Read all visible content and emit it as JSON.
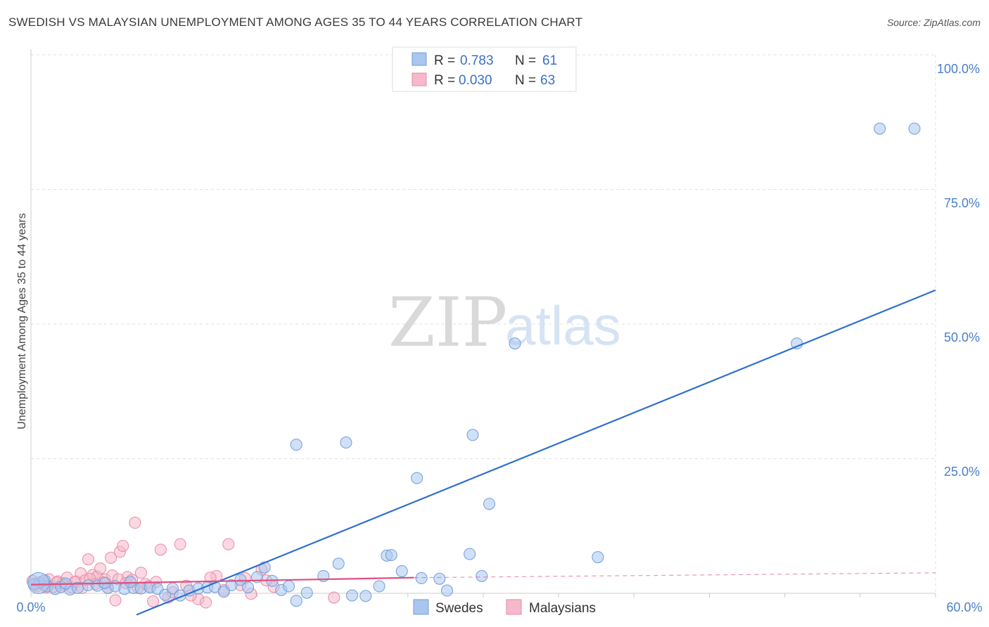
{
  "title": "SWEDISH VS MALAYSIAN UNEMPLOYMENT AMONG AGES 35 TO 44 YEARS CORRELATION CHART",
  "source": "Source: ZipAtlas.com",
  "watermark": {
    "zip": "ZIP",
    "atlas": "atlas"
  },
  "colors": {
    "swedes_fill": "#a9c6ee",
    "swedes_stroke": "#6f9fdc",
    "swedes_line": "#2f6fd0",
    "malaysians_fill": "#f6b9cb",
    "malaysians_stroke": "#e88aa6",
    "malaysians_line": "#e0507e",
    "grid": "#e0e0e0",
    "tick_text": "#4a7fc8"
  },
  "legend": {
    "swedes": {
      "r_label": "R =",
      "r_value": "0.783",
      "n_label": "N =",
      "n_value": "61"
    },
    "malaysians": {
      "r_label": "R =",
      "r_value": "0.030",
      "n_label": "N =",
      "n_value": "63"
    }
  },
  "chart_data": {
    "type": "scatter",
    "title": "SWEDISH VS MALAYSIAN UNEMPLOYMENT AMONG AGES 35 TO 44 YEARS CORRELATION CHART",
    "xlabel": "",
    "ylabel": "Unemployment Among Ages 35 to 44 years",
    "xlim": [
      0,
      60
    ],
    "ylim": [
      0,
      100
    ],
    "x_tick_labels": [
      "0.0%",
      "60.0%"
    ],
    "y_ticks": [
      25,
      50,
      75,
      100
    ],
    "y_tick_labels": [
      "25.0%",
      "50.0%",
      "75.0%",
      "100.0%"
    ],
    "grid": true,
    "series": [
      {
        "name": "Swedes",
        "r": 0.783,
        "n": 61,
        "trend": {
          "x": [
            7,
            60
          ],
          "y": [
            -4.0,
            56.3
          ]
        },
        "points": [
          [
            0.6,
            2.0
          ],
          [
            1.1,
            1.3
          ],
          [
            1.6,
            0.8
          ],
          [
            2.0,
            1.2
          ],
          [
            2.6,
            0.7
          ],
          [
            3.1,
            1.0
          ],
          [
            3.8,
            1.5
          ],
          [
            4.4,
            1.4
          ],
          [
            5.1,
            1.0
          ],
          [
            5.6,
            1.3
          ],
          [
            6.2,
            0.8
          ],
          [
            6.8,
            1.0
          ],
          [
            7.3,
            0.9
          ],
          [
            7.9,
            1.1
          ],
          [
            8.4,
            0.8
          ],
          [
            8.9,
            -0.3
          ],
          [
            9.4,
            0.9
          ],
          [
            9.9,
            -0.4
          ],
          [
            10.5,
            0.5
          ],
          [
            11.1,
            0.9
          ],
          [
            11.7,
            1.1
          ],
          [
            12.2,
            1.2
          ],
          [
            12.8,
            0.3
          ],
          [
            13.3,
            1.5
          ],
          [
            13.9,
            2.5
          ],
          [
            14.4,
            1.1
          ],
          [
            15.0,
            3.0
          ],
          [
            15.5,
            4.8
          ],
          [
            16.0,
            2.3
          ],
          [
            16.6,
            0.6
          ],
          [
            17.1,
            1.3
          ],
          [
            17.6,
            -1.4
          ],
          [
            18.3,
            0.1
          ],
          [
            19.4,
            3.2
          ],
          [
            20.4,
            5.5
          ],
          [
            21.3,
            -0.4
          ],
          [
            17.6,
            27.6
          ],
          [
            20.9,
            28.0
          ],
          [
            22.2,
            -0.5
          ],
          [
            23.1,
            1.3
          ],
          [
            23.6,
            7.0
          ],
          [
            23.9,
            7.1
          ],
          [
            24.6,
            4.1
          ],
          [
            25.6,
            21.4
          ],
          [
            25.9,
            2.8
          ],
          [
            27.1,
            2.7
          ],
          [
            27.6,
            0.5
          ],
          [
            29.1,
            7.3
          ],
          [
            29.9,
            3.2
          ],
          [
            29.3,
            29.4
          ],
          [
            30.4,
            16.6
          ],
          [
            32.1,
            46.4
          ],
          [
            37.6,
            6.7
          ],
          [
            50.8,
            46.4
          ],
          [
            56.3,
            86.3
          ],
          [
            58.6,
            86.3
          ],
          [
            0.2,
            1.7
          ],
          [
            0.9,
            2.4
          ],
          [
            2.3,
            1.8
          ],
          [
            4.9,
            1.9
          ],
          [
            6.6,
            2.1
          ]
        ]
      },
      {
        "name": "Malaysians",
        "r": 0.03,
        "n": 63,
        "trend": {
          "x": [
            0,
            25.4
          ],
          "y": [
            1.6,
            2.9
          ]
        },
        "trend_extension": {
          "x": [
            25.4,
            60
          ],
          "y": [
            2.9,
            3.8
          ]
        },
        "points": [
          [
            0.1,
            2.3
          ],
          [
            0.3,
            1.6
          ],
          [
            0.6,
            2.0
          ],
          [
            0.9,
            1.4
          ],
          [
            1.2,
            2.6
          ],
          [
            1.5,
            1.2
          ],
          [
            1.8,
            2.2
          ],
          [
            2.1,
            1.9
          ],
          [
            2.4,
            2.9
          ],
          [
            2.7,
            1.1
          ],
          [
            3.0,
            2.2
          ],
          [
            3.3,
            3.7
          ],
          [
            3.6,
            2.4
          ],
          [
            3.8,
            6.3
          ],
          [
            4.1,
            3.4
          ],
          [
            4.4,
            3.1
          ],
          [
            4.6,
            4.6
          ],
          [
            4.9,
            2.6
          ],
          [
            5.1,
            1.0
          ],
          [
            5.3,
            6.6
          ],
          [
            5.6,
            -1.3
          ],
          [
            5.9,
            7.7
          ],
          [
            6.1,
            8.8
          ],
          [
            6.4,
            3.0
          ],
          [
            6.9,
            13.1
          ],
          [
            7.1,
            1.0
          ],
          [
            7.6,
            1.7
          ],
          [
            8.1,
            -1.5
          ],
          [
            8.6,
            8.1
          ],
          [
            9.1,
            -0.8
          ],
          [
            9.9,
            9.1
          ],
          [
            10.3,
            1.4
          ],
          [
            11.1,
            -1.1
          ],
          [
            11.6,
            -1.7
          ],
          [
            12.3,
            3.2
          ],
          [
            13.1,
            9.1
          ],
          [
            13.9,
            1.5
          ],
          [
            14.6,
            -0.1
          ],
          [
            15.3,
            4.4
          ],
          [
            16.1,
            1.2
          ],
          [
            20.1,
            -0.8
          ],
          [
            0.4,
            1.3
          ],
          [
            1.0,
            1.1
          ],
          [
            1.7,
            2.0
          ],
          [
            2.2,
            1.5
          ],
          [
            2.9,
            2.1
          ],
          [
            3.4,
            1.0
          ],
          [
            3.9,
            2.7
          ],
          [
            4.3,
            1.7
          ],
          [
            4.8,
            2.0
          ],
          [
            5.4,
            3.3
          ],
          [
            5.8,
            2.6
          ],
          [
            6.3,
            1.9
          ],
          [
            6.7,
            2.5
          ],
          [
            7.3,
            3.8
          ],
          [
            7.8,
            1.3
          ],
          [
            8.3,
            2.1
          ],
          [
            9.4,
            0.2
          ],
          [
            10.6,
            -0.4
          ],
          [
            11.9,
            2.9
          ],
          [
            12.8,
            0.6
          ],
          [
            14.2,
            2.8
          ],
          [
            15.6,
            2.4
          ]
        ]
      }
    ]
  },
  "bottom_legend": {
    "swedes": "Swedes",
    "malaysians": "Malaysians"
  }
}
